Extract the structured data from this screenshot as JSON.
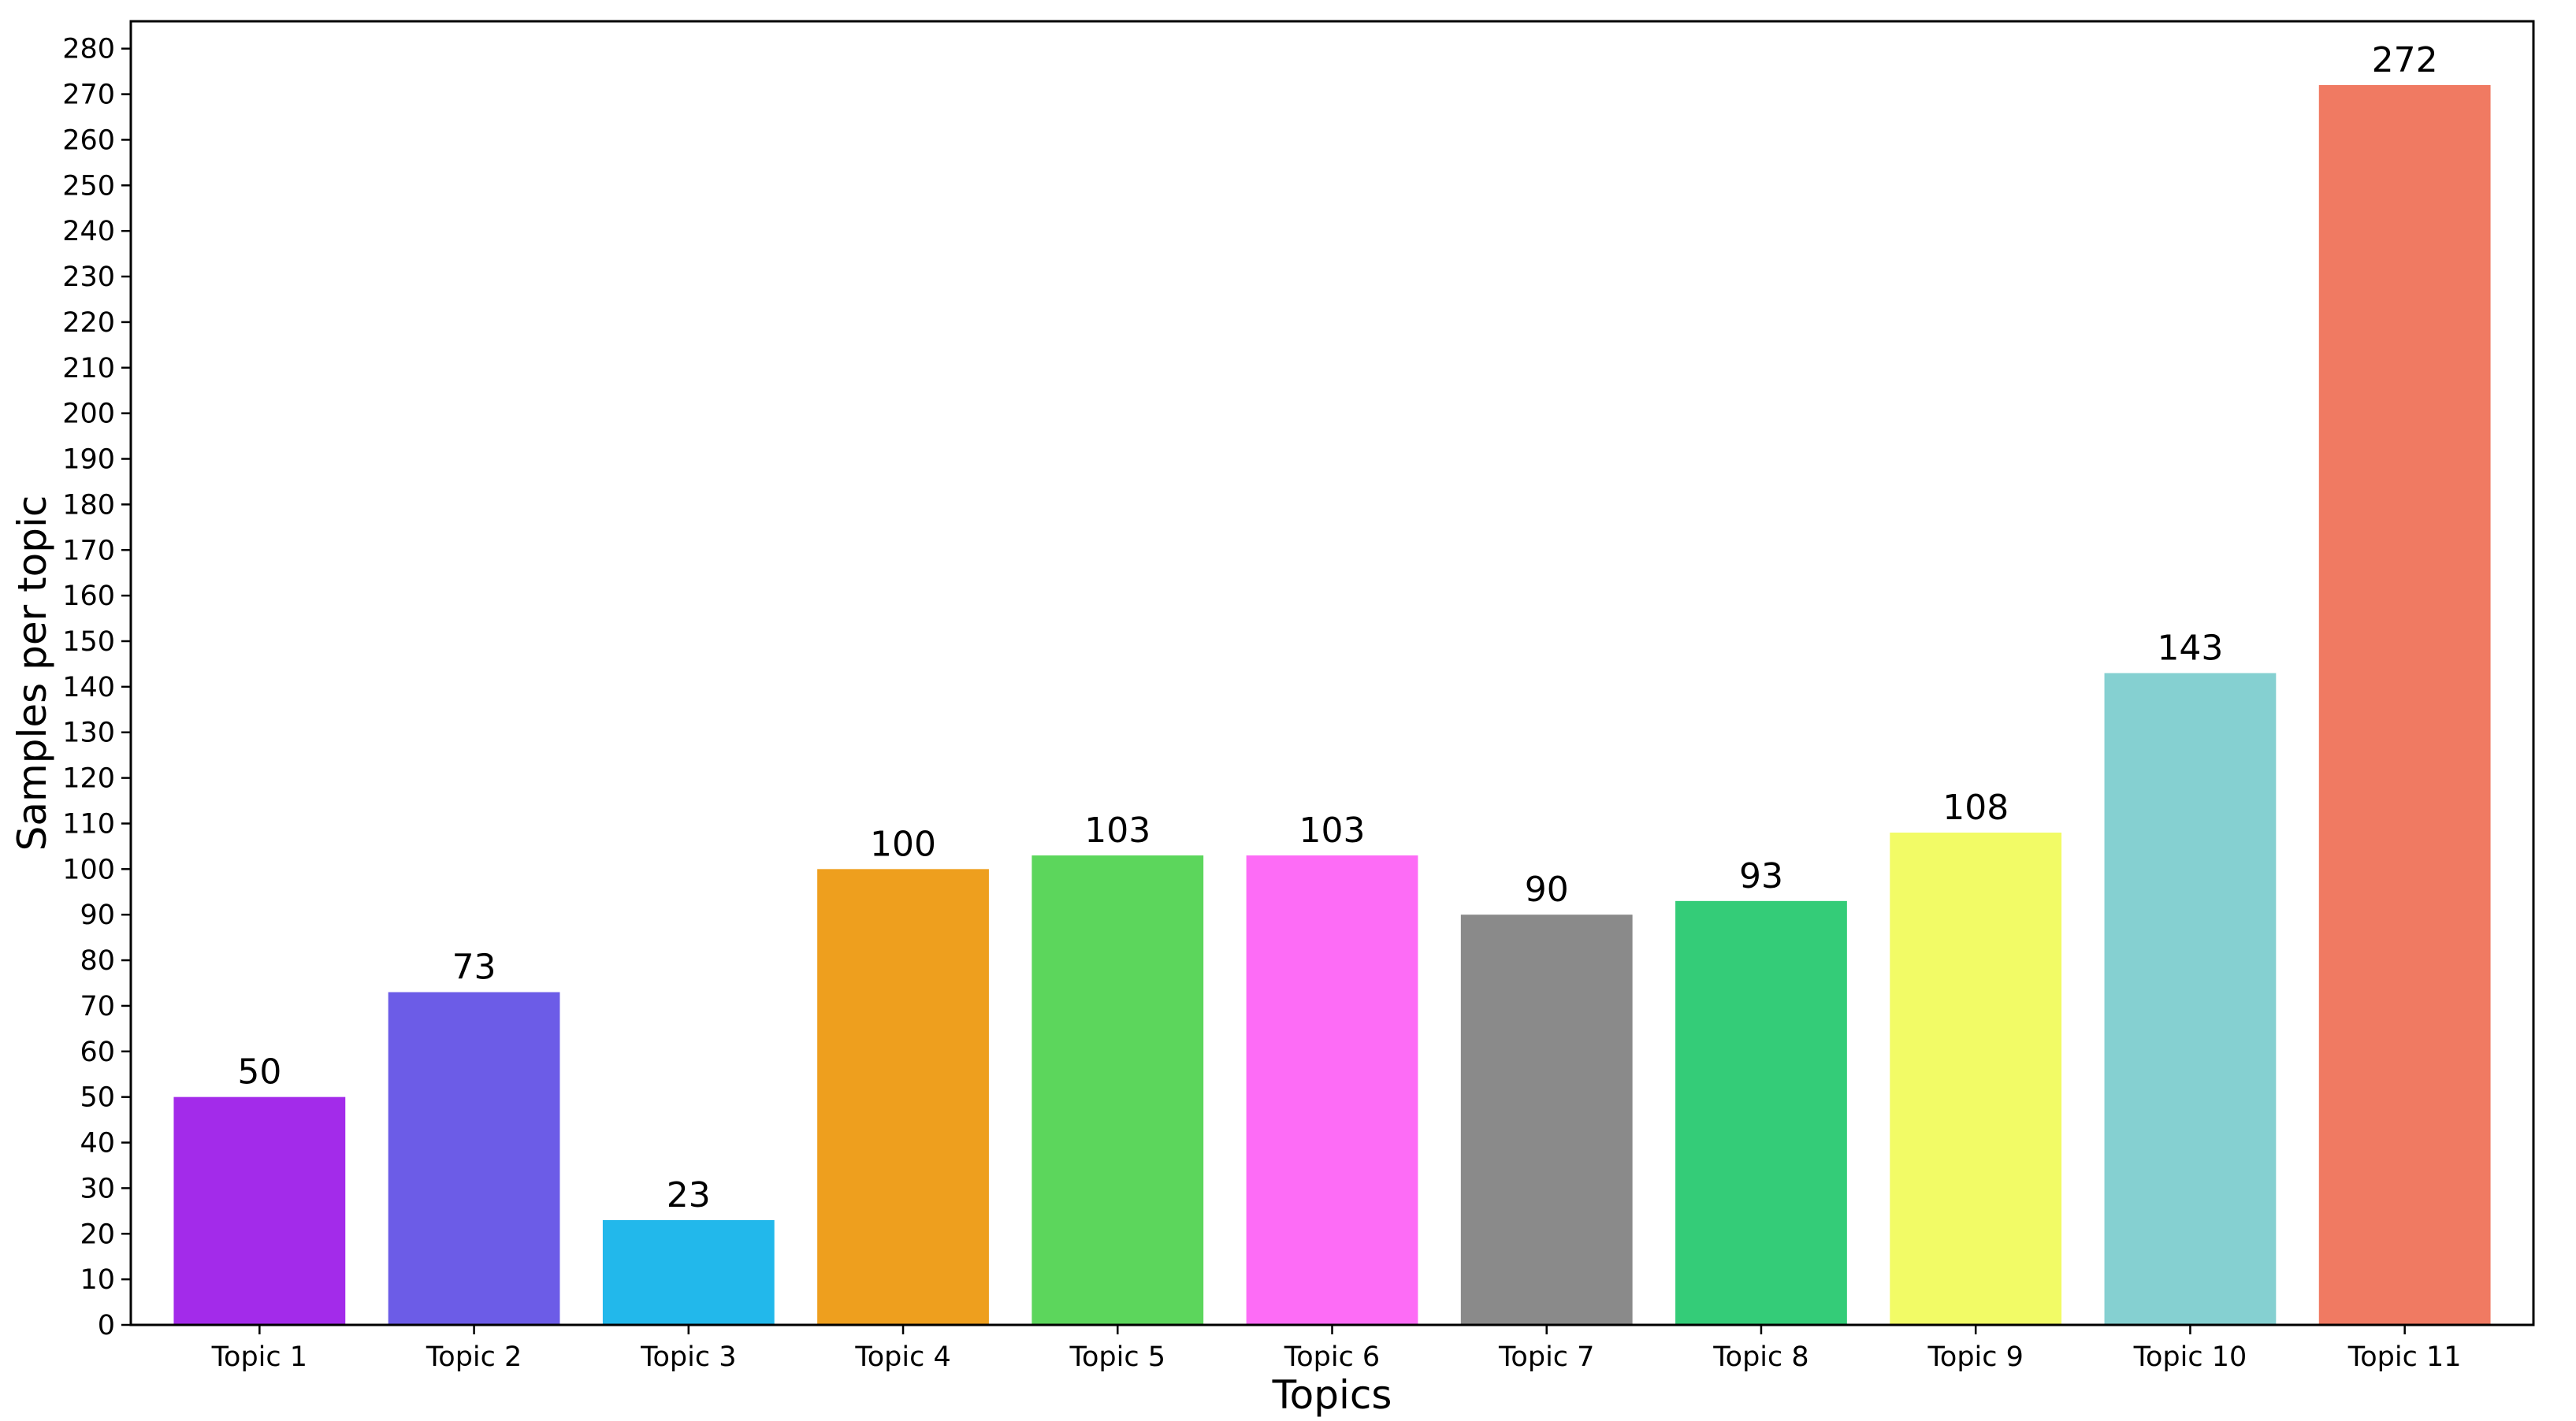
{
  "chart_data": {
    "type": "bar",
    "title": "",
    "xlabel": "Topics",
    "ylabel": "Samples per topic",
    "categories": [
      "Topic 1",
      "Topic 2",
      "Topic 3",
      "Topic 4",
      "Topic 5",
      "Topic 6",
      "Topic 7",
      "Topic 8",
      "Topic 9",
      "Topic 10",
      "Topic 11"
    ],
    "values": [
      50,
      73,
      23,
      100,
      103,
      103,
      90,
      93,
      108,
      143,
      272
    ],
    "value_labels": [
      "50",
      "73",
      "23",
      "100",
      "103",
      "103",
      "90",
      "93",
      "108",
      "143",
      "272"
    ],
    "colors": [
      "#a32bea",
      "#6c5ce7",
      "#22b8eb",
      "#ee9f1e",
      "#5cd65c",
      "#fd6cf6",
      "#8a8a8a",
      "#34cc78",
      "#f2fb66",
      "#85d0d1",
      "#f07a62"
    ],
    "ylim": [
      0,
      286
    ],
    "yticks": [
      0,
      10,
      20,
      30,
      40,
      50,
      60,
      70,
      80,
      90,
      100,
      110,
      120,
      130,
      140,
      150,
      160,
      170,
      180,
      190,
      200,
      210,
      220,
      230,
      240,
      250,
      260,
      270,
      280
    ],
    "ytick_labels": [
      "0",
      "10",
      "20",
      "30",
      "40",
      "50",
      "60",
      "70",
      "80",
      "90",
      "100",
      "110",
      "120",
      "130",
      "140",
      "150",
      "160",
      "170",
      "180",
      "190",
      "200",
      "210",
      "220",
      "230",
      "240",
      "250",
      "260",
      "270",
      "280"
    ],
    "grid": false,
    "legend": "none"
  }
}
